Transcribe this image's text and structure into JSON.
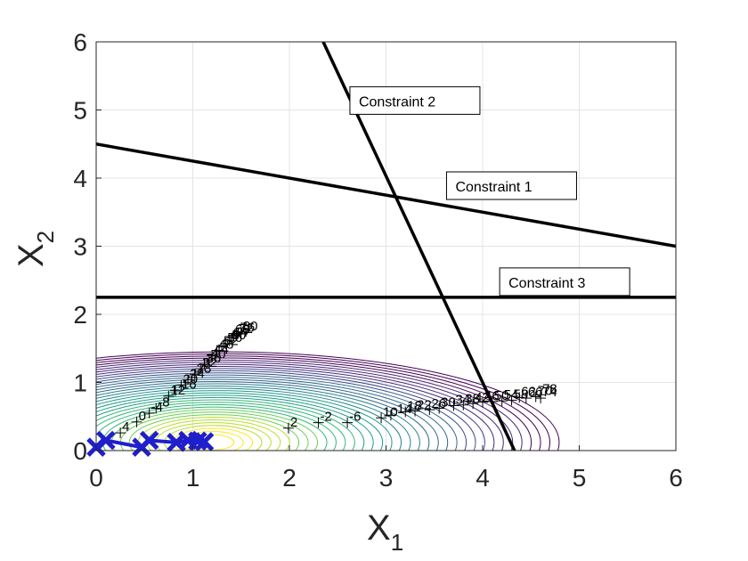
{
  "chart_data": {
    "type": "line",
    "xlabel": "X",
    "xlabel_sub": "1",
    "ylabel": "X",
    "ylabel_sub": "2",
    "xlim": [
      0,
      6
    ],
    "ylim": [
      0,
      6
    ],
    "grid": true,
    "xticks": [
      "0",
      "1",
      "2",
      "3",
      "4",
      "5",
      "6"
    ],
    "yticks": [
      "0",
      "1",
      "2",
      "3",
      "4",
      "5",
      "6"
    ],
    "constraints": [
      {
        "name": "Constraint 1",
        "p1": [
          0,
          4.5
        ],
        "p2": [
          6,
          3.0
        ],
        "label_at": [
          3.7,
          3.83
        ]
      },
      {
        "name": "Constraint 2",
        "p1": [
          2.35,
          6
        ],
        "p2": [
          4.33,
          0
        ],
        "label_at": [
          2.7,
          5.08
        ]
      },
      {
        "name": "Constraint 3",
        "p1": [
          0,
          2.25
        ],
        "p2": [
          6,
          2.25
        ],
        "label_at": [
          4.25,
          2.42
        ]
      }
    ],
    "contours": {
      "center": [
        1.2,
        0.12
      ],
      "levels": 36,
      "colors": [
        "#440154",
        "#482878",
        "#3e4989",
        "#31688e",
        "#26828e",
        "#1f9e89",
        "#35b779",
        "#6ece58",
        "#b5de2b",
        "#fde725"
      ]
    },
    "path": {
      "color": "#1f1fcc",
      "points": [
        [
          0.0,
          0.05
        ],
        [
          0.1,
          0.15
        ],
        [
          0.47,
          0.05
        ],
        [
          0.55,
          0.15
        ],
        [
          0.83,
          0.12
        ],
        [
          0.95,
          0.15
        ],
        [
          1.05,
          0.14
        ],
        [
          1.12,
          0.13
        ]
      ]
    },
    "iter_markers_lower": [
      {
        "x": 0.25,
        "y": 0.26,
        "label": "4"
      },
      {
        "x": 1.99,
        "y": 0.33,
        "label": "2"
      },
      {
        "x": 2.3,
        "y": 0.41,
        "label": "-2"
      },
      {
        "x": 2.6,
        "y": 0.41,
        "label": "-6"
      },
      {
        "x": 2.95,
        "y": 0.48,
        "label": "10"
      },
      {
        "x": 3.05,
        "y": 0.52,
        "label": "-14"
      },
      {
        "x": 3.2,
        "y": 0.57,
        "label": "18"
      },
      {
        "x": 3.3,
        "y": 0.58,
        "label": "22"
      },
      {
        "x": 3.45,
        "y": 0.6,
        "label": "26"
      },
      {
        "x": 3.55,
        "y": 0.62,
        "label": "30"
      },
      {
        "x": 3.7,
        "y": 0.66,
        "label": "34"
      },
      {
        "x": 3.8,
        "y": 0.67,
        "label": "38"
      },
      {
        "x": 3.9,
        "y": 0.69,
        "label": "42"
      },
      {
        "x": 4.0,
        "y": 0.71,
        "label": "46"
      },
      {
        "x": 4.1,
        "y": 0.72,
        "label": "50"
      },
      {
        "x": 4.2,
        "y": 0.73,
        "label": "54"
      },
      {
        "x": 4.3,
        "y": 0.74,
        "label": "58"
      },
      {
        "x": 4.38,
        "y": 0.78,
        "label": "62"
      },
      {
        "x": 4.45,
        "y": 0.77,
        "label": "66"
      },
      {
        "x": 4.55,
        "y": 0.79,
        "label": "70"
      },
      {
        "x": 4.6,
        "y": 0.77,
        "label": "74"
      },
      {
        "x": 4.6,
        "y": 0.82,
        "label": "78"
      }
    ],
    "iter_markers_upper": [
      {
        "x": 0.42,
        "y": 0.42,
        "label": "0"
      },
      {
        "x": 0.55,
        "y": 0.55,
        "label": "-4"
      },
      {
        "x": 0.62,
        "y": 0.62,
        "label": "-8"
      },
      {
        "x": 0.75,
        "y": 0.8,
        "label": "12"
      },
      {
        "x": 0.82,
        "y": 0.88,
        "label": "-16"
      },
      {
        "x": 0.88,
        "y": 0.96,
        "label": "20"
      },
      {
        "x": 0.95,
        "y": 1.04,
        "label": "24"
      },
      {
        "x": 1.02,
        "y": 1.12,
        "label": "28"
      },
      {
        "x": 1.08,
        "y": 1.2,
        "label": "32"
      },
      {
        "x": 1.12,
        "y": 1.27,
        "label": "36"
      },
      {
        "x": 1.17,
        "y": 1.33,
        "label": "40"
      },
      {
        "x": 1.2,
        "y": 1.4,
        "label": "44"
      },
      {
        "x": 1.25,
        "y": 1.47,
        "label": "48"
      },
      {
        "x": 1.3,
        "y": 1.52,
        "label": "52"
      },
      {
        "x": 1.34,
        "y": 1.57,
        "label": "56"
      },
      {
        "x": 1.38,
        "y": 1.61,
        "label": "60"
      },
      {
        "x": 1.4,
        "y": 1.65,
        "label": "64"
      },
      {
        "x": 1.42,
        "y": 1.69,
        "label": "68"
      },
      {
        "x": 1.45,
        "y": 1.7,
        "label": "72"
      },
      {
        "x": 1.47,
        "y": 1.72,
        "label": "76"
      },
      {
        "x": 1.5,
        "y": 1.74,
        "label": "80"
      }
    ]
  }
}
